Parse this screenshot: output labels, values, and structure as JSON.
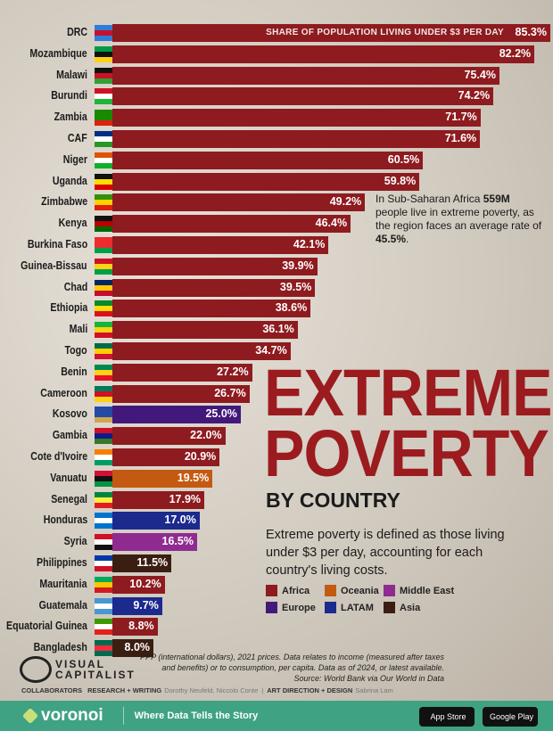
{
  "chart_data": {
    "type": "bar",
    "orientation": "horizontal",
    "title": "EXTREME POVERTY",
    "subtitle": "BY COUNTRY",
    "value_label": "SHARE OF POPULATION LIVING UNDER $3 PER DAY",
    "xlim": [
      0,
      85.3
    ],
    "grid": false,
    "categories": [
      "DRC",
      "Mozambique",
      "Malawi",
      "Burundi",
      "Zambia",
      "CAF",
      "Niger",
      "Uganda",
      "Zimbabwe",
      "Kenya",
      "Burkina Faso",
      "Guinea-Bissau",
      "Chad",
      "Ethiopia",
      "Mali",
      "Togo",
      "Benin",
      "Cameroon",
      "Kosovo",
      "Gambia",
      "Cote d'Ivoire",
      "Vanuatu",
      "Senegal",
      "Honduras",
      "Syria",
      "Philippines",
      "Mauritania",
      "Guatemala",
      "Equatorial Guinea",
      "Bangladesh"
    ],
    "values": [
      85.3,
      82.2,
      75.4,
      74.2,
      71.7,
      71.6,
      60.5,
      59.8,
      49.2,
      46.4,
      42.1,
      39.9,
      39.5,
      38.6,
      36.1,
      34.7,
      27.2,
      26.7,
      25.0,
      22.0,
      20.9,
      19.5,
      17.9,
      17.0,
      16.5,
      11.5,
      10.2,
      9.7,
      8.8,
      8.0
    ],
    "labels": [
      "85.3%",
      "82.2%",
      "75.4%",
      "74.2%",
      "71.7%",
      "71.6%",
      "60.5%",
      "59.8%",
      "49.2%",
      "46.4%",
      "42.1%",
      "39.9%",
      "39.5%",
      "38.6%",
      "36.1%",
      "34.7%",
      "27.2%",
      "26.7%",
      "25.0%",
      "22.0%",
      "20.9%",
      "19.5%",
      "17.9%",
      "17.0%",
      "16.5%",
      "11.5%",
      "10.2%",
      "9.7%",
      "8.8%",
      "8.0%"
    ],
    "regions": [
      "Africa",
      "Africa",
      "Africa",
      "Africa",
      "Africa",
      "Africa",
      "Africa",
      "Africa",
      "Africa",
      "Africa",
      "Africa",
      "Africa",
      "Africa",
      "Africa",
      "Africa",
      "Africa",
      "Africa",
      "Africa",
      "Europe",
      "Africa",
      "Africa",
      "Oceania",
      "Africa",
      "LATAM",
      "Middle East",
      "Asia",
      "Africa",
      "LATAM",
      "Africa",
      "Asia"
    ],
    "legend": [
      {
        "name": "Africa",
        "color": "#8e1b1f"
      },
      {
        "name": "Oceania",
        "color": "#c45a12"
      },
      {
        "name": "Middle East",
        "color": "#8f2b90"
      },
      {
        "name": "Europe",
        "color": "#42197a"
      },
      {
        "name": "LATAM",
        "color": "#1c2a8e"
      },
      {
        "name": "Asia",
        "color": "#3b1e12"
      }
    ],
    "flags": [
      [
        "#2b7fd6",
        "#c8102e",
        "#2b7fd6"
      ],
      [
        "#009a44",
        "#111111",
        "#fcd116"
      ],
      [
        "#111111",
        "#ce1126",
        "#339e35"
      ],
      [
        "#ce1126",
        "#ffffff",
        "#1eb53a"
      ],
      [
        "#198a00",
        "#198a00",
        "#de2010"
      ],
      [
        "#003082",
        "#ffffff",
        "#289728"
      ],
      [
        "#e05206",
        "#ffffff",
        "#0db02b"
      ],
      [
        "#111111",
        "#fcdc04",
        "#d90000"
      ],
      [
        "#319208",
        "#ffd200",
        "#de2010"
      ],
      [
        "#111111",
        "#bb0000",
        "#006600"
      ],
      [
        "#ef2b2d",
        "#ef2b2d",
        "#009e49"
      ],
      [
        "#ce1126",
        "#fcd116",
        "#009e49"
      ],
      [
        "#002664",
        "#fecb00",
        "#c60c30"
      ],
      [
        "#078930",
        "#fcdd09",
        "#da121a"
      ],
      [
        "#14b53a",
        "#fcd116",
        "#ce1126"
      ],
      [
        "#006a4e",
        "#ffce00",
        "#d21034"
      ],
      [
        "#008751",
        "#fcd116",
        "#e8112d"
      ],
      [
        "#007a5e",
        "#ce1126",
        "#fcd116"
      ],
      [
        "#244aa5",
        "#244aa5",
        "#d0a650"
      ],
      [
        "#ce1126",
        "#0c1c8c",
        "#3a7728"
      ],
      [
        "#f77f00",
        "#ffffff",
        "#009e60"
      ],
      [
        "#d21034",
        "#111111",
        "#009543"
      ],
      [
        "#00853f",
        "#fdef42",
        "#e31b23"
      ],
      [
        "#0073cf",
        "#ffffff",
        "#0073cf"
      ],
      [
        "#ce1126",
        "#ffffff",
        "#111111"
      ],
      [
        "#0038a8",
        "#ffffff",
        "#ce1126"
      ],
      [
        "#00a95c",
        "#ffc400",
        "#d01c1f"
      ],
      [
        "#4997d0",
        "#ffffff",
        "#4997d0"
      ],
      [
        "#3e9a00",
        "#ffffff",
        "#e32118"
      ],
      [
        "#006a4e",
        "#f42a41",
        "#006a4e"
      ]
    ]
  },
  "annotation": {
    "pre": "In Sub-Saharan Africa ",
    "bold1": "559M",
    "mid": " people live in extreme poverty, as the region faces an average rate of ",
    "bold2": "45.5%",
    "post": "."
  },
  "description": "Extreme poverty is defined as those living under $3 per day, accounting for each country's living costs.",
  "footnote": [
    "PPP (international dollars), 2021 prices. Data relates to income (measured after taxes",
    "and benefits) or to consumption, per capita. Data as of 2024, or latest available.",
    "Source: World Bank via Our World in Data"
  ],
  "brand": {
    "line1": "VISUAL",
    "line2": "CAPITALIST"
  },
  "collaborators": {
    "label": "COLLABORATORS",
    "r_label": "RESEARCH + WRITING",
    "r_names": "Dorothy Neufeld, Niccolo Conte",
    "sep": "|",
    "a_label": "ART DIRECTION + DESIGN",
    "a_names": "Sabrina Lam"
  },
  "footer": {
    "logo": "voronoi",
    "tagline": "Where Data Tells the Story",
    "app_store": "App Store",
    "google_play": "Google Play"
  }
}
